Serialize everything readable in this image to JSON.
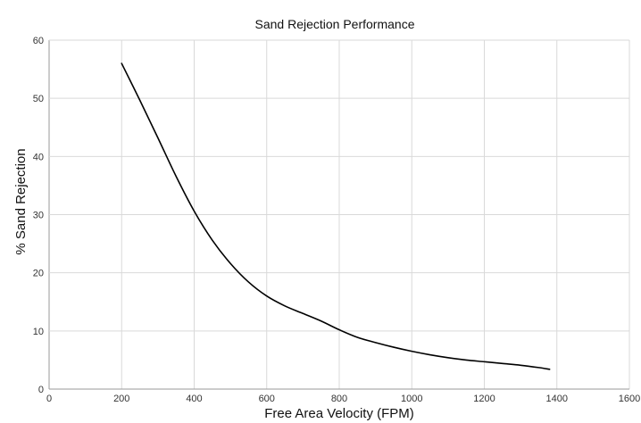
{
  "chart_data": {
    "type": "line",
    "title": "Sand Rejection Performance",
    "xlabel": "Free Area Velocity (FPM)",
    "ylabel": "% Sand Rejection",
    "xlim": [
      0,
      1600
    ],
    "ylim": [
      0,
      60
    ],
    "x_ticks": [
      0,
      200,
      400,
      600,
      800,
      1000,
      1200,
      1400,
      1600
    ],
    "y_ticks": [
      0,
      10,
      20,
      30,
      40,
      50,
      60
    ],
    "x_tick_labels": [
      "0",
      "200",
      "400",
      "600",
      "800",
      "1000",
      "1200",
      "1400",
      "1600"
    ],
    "y_tick_labels": [
      "0",
      "10",
      "20",
      "30",
      "40",
      "50",
      "60"
    ],
    "grid": true,
    "legend": false,
    "series": [
      {
        "color": "#000000",
        "x": [
          200,
          250,
          300,
          350,
          400,
          450,
          500,
          550,
          600,
          650,
          700,
          750,
          800,
          850,
          900,
          950,
          1000,
          1050,
          1100,
          1150,
          1200,
          1250,
          1300,
          1350,
          1380
        ],
        "y": [
          56,
          49.7,
          43.2,
          36.6,
          30.6,
          25.6,
          21.6,
          18.4,
          16.0,
          14.3,
          13.0,
          11.7,
          10.2,
          8.9,
          8.0,
          7.2,
          6.5,
          5.9,
          5.4,
          5.0,
          4.7,
          4.4,
          4.1,
          3.7,
          3.4
        ]
      }
    ]
  }
}
